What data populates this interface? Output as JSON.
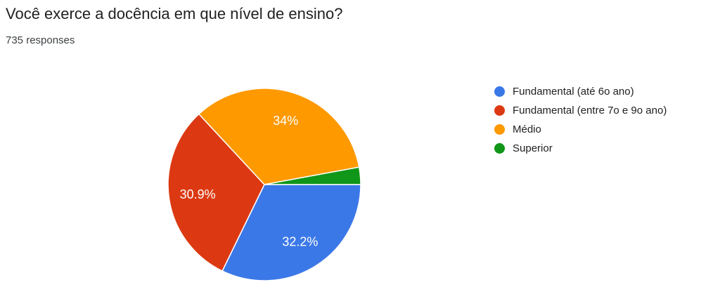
{
  "header": {
    "title": "Você exerce a docência em que nível de ensino?",
    "subtitle": "735 responses"
  },
  "chart_data": {
    "type": "pie",
    "title": "Você exerce a docência em que nível de ensino?",
    "responses_total": 735,
    "legend_position": "right",
    "start_angle_deg_clockwise_from_east": 0,
    "values_are_percent": true,
    "label_color": "#ffffff",
    "slice_stroke_color": "#ffffff",
    "series": [
      {
        "name": "Fundamental (até 6o ano)",
        "value": 32.2,
        "label": "32.2%",
        "color": "#3b78e7"
      },
      {
        "name": "Fundamental (entre 7o e 9o ano)",
        "value": 30.9,
        "label": "30.9%",
        "color": "#dc3912"
      },
      {
        "name": "Médio",
        "value": 34.0,
        "label": "34%",
        "color": "#ff9900"
      },
      {
        "name": "Superior",
        "value": 2.9,
        "label": "",
        "color": "#109618"
      }
    ]
  }
}
